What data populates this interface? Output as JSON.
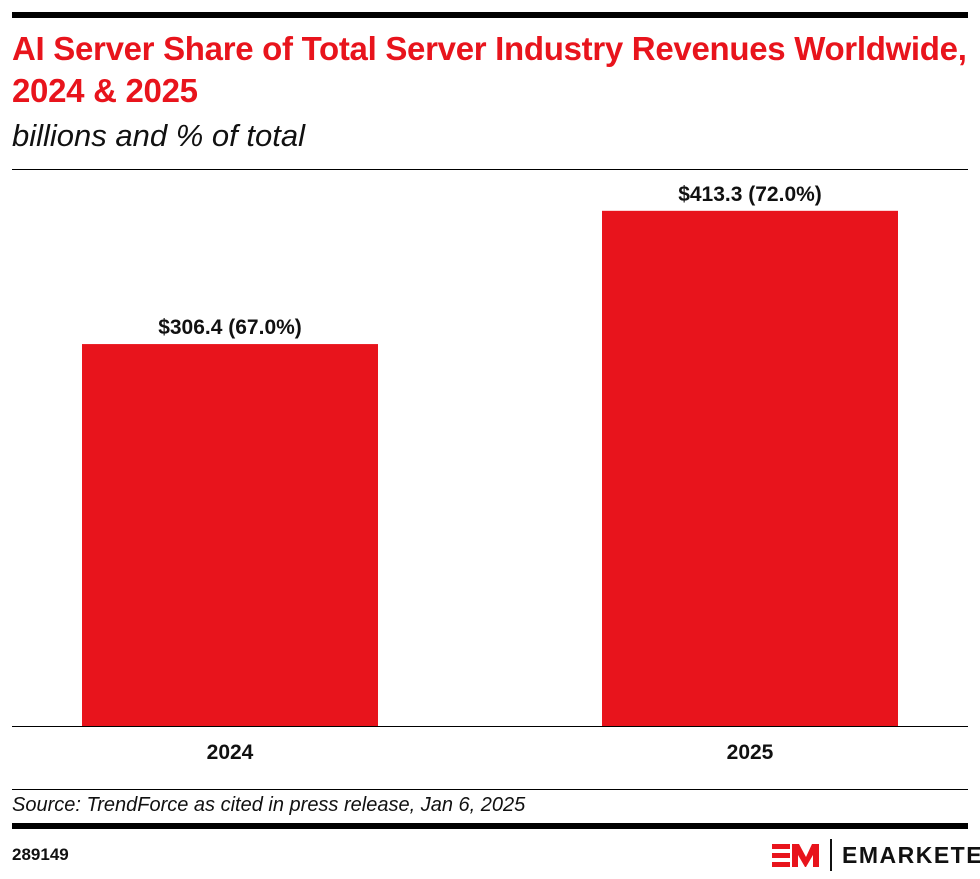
{
  "title": "AI Server Share of Total Server Industry Revenues Worldwide, 2024 & 2025",
  "subtitle": "billions and % of total",
  "source": "Source: TrendForce as cited in press release, Jan 6, 2025",
  "chart_id": "289149",
  "brand": "EMARKETER",
  "colors": {
    "bar": "#e8141c",
    "title": "#e8141c"
  },
  "chart_data": {
    "type": "bar",
    "title": "AI Server Share of Total Server Industry Revenues Worldwide, 2024 & 2025",
    "subtitle": "billions and % of total",
    "categories": [
      "2024",
      "2025"
    ],
    "values": [
      306.4,
      413.3
    ],
    "percent_of_total": [
      67.0,
      72.0
    ],
    "data_labels": [
      "$306.4 (67.0%)",
      "$413.3 (72.0%)"
    ],
    "xlabel": "",
    "ylabel": "",
    "ylim": [
      0,
      430
    ],
    "grid": false
  }
}
